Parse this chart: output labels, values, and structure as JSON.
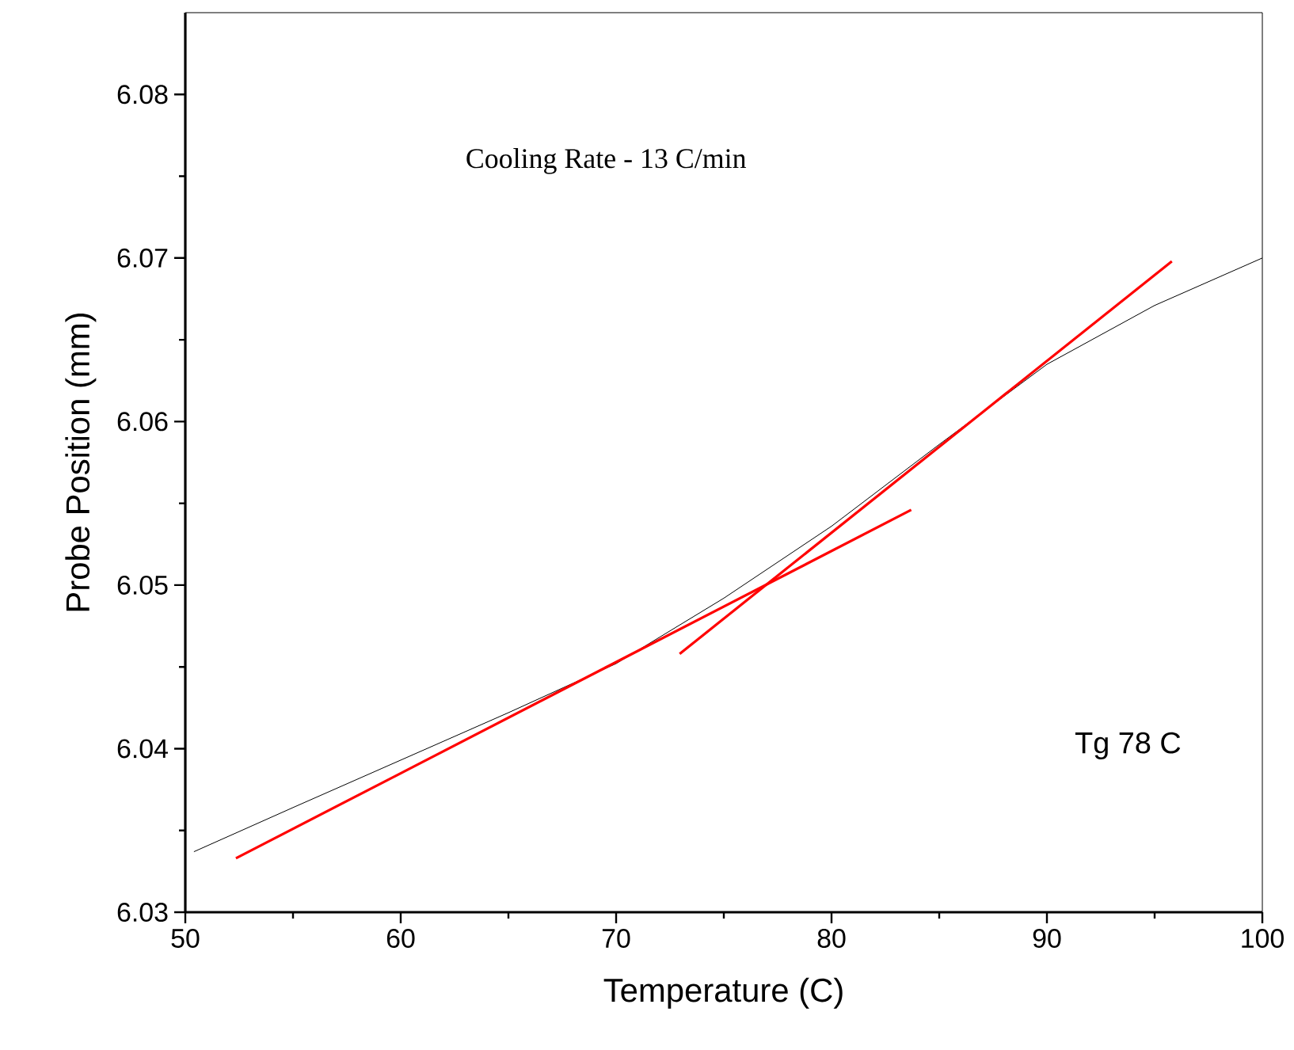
{
  "chart_data": {
    "type": "line",
    "xlabel": "Temperature (C)",
    "ylabel": "Probe Position (mm)",
    "xlim": [
      50,
      100
    ],
    "ylim": [
      6.03,
      6.085
    ],
    "xticks": [
      50,
      60,
      70,
      80,
      90,
      100
    ],
    "yticks": [
      6.03,
      6.04,
      6.05,
      6.06,
      6.07,
      6.08
    ],
    "marker": "none",
    "line_style": "solid",
    "annotations": [
      "Cooling Rate - 13 C/min",
      "Tg 78 C"
    ],
    "series": [
      {
        "color": "#000000",
        "x": [
          50.4,
          55,
          60,
          65,
          70,
          75,
          80,
          85,
          90,
          95,
          100
        ],
        "values": [
          6.0337,
          6.0364,
          6.0393,
          6.0422,
          6.0452,
          6.0492,
          6.0536,
          6.0586,
          6.0635,
          6.0671,
          6.07
        ]
      },
      {
        "color": "#ff0000",
        "x": [
          52.35,
          83.7
        ],
        "values": [
          6.0333,
          6.0546
        ]
      },
      {
        "color": "#ff0000",
        "x": [
          72.95,
          95.8
        ],
        "values": [
          6.0458,
          6.0698
        ]
      }
    ]
  }
}
